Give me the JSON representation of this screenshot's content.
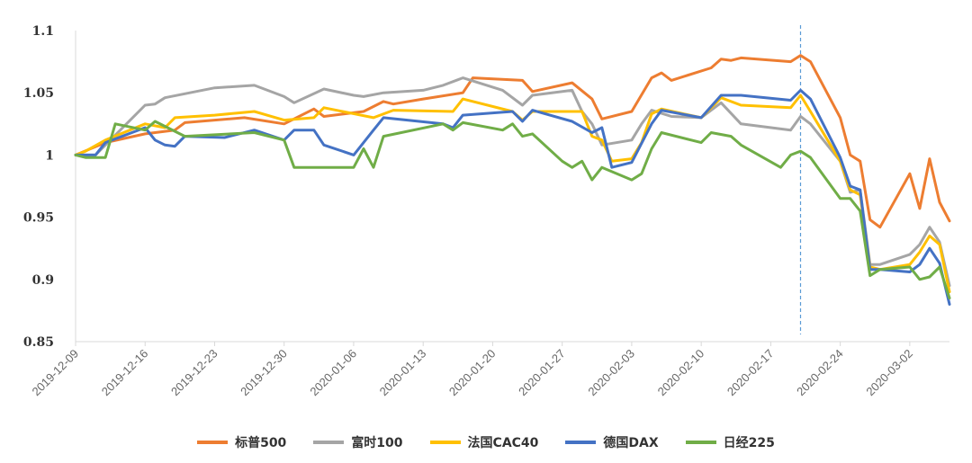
{
  "chart_data": {
    "type": "line",
    "y_ticks": [
      "1.1",
      "1.05",
      "1",
      "0.95",
      "0.9",
      "0.85"
    ],
    "ylim": [
      0.85,
      1.1
    ],
    "x_ticks": [
      "2019-12-09",
      "2019-12-16",
      "2019-12-23",
      "2019-12-30",
      "2020-01-06",
      "2020-01-13",
      "2020-01-20",
      "2020-01-27",
      "2020-02-03",
      "2020-02-10",
      "2020-02-17",
      "2020-02-24",
      "2020-03-02"
    ],
    "x_start": "2019-12-09",
    "x_end": "2020-03-06",
    "vline_date": "2020-02-20",
    "series": [
      {
        "name": "标普500",
        "color": "#ED7D31",
        "points": [
          [
            "2019-12-09",
            1.0
          ],
          [
            "2019-12-12",
            1.01
          ],
          [
            "2019-12-16",
            1.017
          ],
          [
            "2019-12-19",
            1.02
          ],
          [
            "2019-12-20",
            1.026
          ],
          [
            "2019-12-26",
            1.03
          ],
          [
            "2019-12-30",
            1.025
          ],
          [
            "2020-01-02",
            1.037
          ],
          [
            "2020-01-03",
            1.031
          ],
          [
            "2020-01-07",
            1.035
          ],
          [
            "2020-01-09",
            1.043
          ],
          [
            "2020-01-10",
            1.041
          ],
          [
            "2020-01-13",
            1.045
          ],
          [
            "2020-01-17",
            1.05
          ],
          [
            "2020-01-18",
            1.062
          ],
          [
            "2020-01-23",
            1.06
          ],
          [
            "2020-01-24",
            1.051
          ],
          [
            "2020-01-28",
            1.058
          ],
          [
            "2020-01-30",
            1.045
          ],
          [
            "2020-01-31",
            1.029
          ],
          [
            "2020-02-03",
            1.035
          ],
          [
            "2020-02-05",
            1.062
          ],
          [
            "2020-02-06",
            1.066
          ],
          [
            "2020-02-07",
            1.06
          ],
          [
            "2020-02-11",
            1.07
          ],
          [
            "2020-02-12",
            1.077
          ],
          [
            "2020-02-13",
            1.076
          ],
          [
            "2020-02-14",
            1.078
          ],
          [
            "2020-02-19",
            1.075
          ],
          [
            "2020-02-20",
            1.08
          ],
          [
            "2020-02-21",
            1.075
          ],
          [
            "2020-02-24",
            1.03
          ],
          [
            "2020-02-25",
            1.0
          ],
          [
            "2020-02-26",
            0.995
          ],
          [
            "2020-02-27",
            0.948
          ],
          [
            "2020-02-28",
            0.942
          ],
          [
            "2020-03-02",
            0.985
          ],
          [
            "2020-03-03",
            0.957
          ],
          [
            "2020-03-04",
            0.997
          ],
          [
            "2020-03-05",
            0.962
          ],
          [
            "2020-03-06",
            0.947
          ]
        ]
      },
      {
        "name": "富时100",
        "color": "#A5A5A5",
        "points": [
          [
            "2019-12-09",
            1.0
          ],
          [
            "2019-12-11",
            1.0
          ],
          [
            "2019-12-16",
            1.04
          ],
          [
            "2019-12-17",
            1.041
          ],
          [
            "2019-12-18",
            1.046
          ],
          [
            "2019-12-23",
            1.054
          ],
          [
            "2019-12-27",
            1.056
          ],
          [
            "2019-12-30",
            1.047
          ],
          [
            "2019-12-31",
            1.042
          ],
          [
            "2020-01-03",
            1.053
          ],
          [
            "2020-01-06",
            1.048
          ],
          [
            "2020-01-07",
            1.047
          ],
          [
            "2020-01-09",
            1.05
          ],
          [
            "2020-01-13",
            1.052
          ],
          [
            "2020-01-15",
            1.056
          ],
          [
            "2020-01-17",
            1.062
          ],
          [
            "2020-01-21",
            1.052
          ],
          [
            "2020-01-23",
            1.04
          ],
          [
            "2020-01-24",
            1.048
          ],
          [
            "2020-01-28",
            1.052
          ],
          [
            "2020-01-29",
            1.035
          ],
          [
            "2020-01-30",
            1.025
          ],
          [
            "2020-01-31",
            1.008
          ],
          [
            "2020-02-03",
            1.012
          ],
          [
            "2020-02-04",
            1.025
          ],
          [
            "2020-02-05",
            1.036
          ],
          [
            "2020-02-07",
            1.031
          ],
          [
            "2020-02-10",
            1.03
          ],
          [
            "2020-02-12",
            1.042
          ],
          [
            "2020-02-14",
            1.025
          ],
          [
            "2020-02-19",
            1.02
          ],
          [
            "2020-02-20",
            1.031
          ],
          [
            "2020-02-21",
            1.025
          ],
          [
            "2020-02-24",
            0.995
          ],
          [
            "2020-02-25",
            0.97
          ],
          [
            "2020-02-26",
            0.972
          ],
          [
            "2020-02-27",
            0.912
          ],
          [
            "2020-02-28",
            0.912
          ],
          [
            "2020-03-02",
            0.92
          ],
          [
            "2020-03-03",
            0.928
          ],
          [
            "2020-03-04",
            0.942
          ],
          [
            "2020-03-05",
            0.93
          ],
          [
            "2020-03-06",
            0.895
          ]
        ]
      },
      {
        "name": "法国CAC40",
        "color": "#FFC000",
        "points": [
          [
            "2019-12-09",
            1.0
          ],
          [
            "2019-12-10",
            1.003
          ],
          [
            "2019-12-12",
            1.012
          ],
          [
            "2019-12-16",
            1.025
          ],
          [
            "2019-12-18",
            1.022
          ],
          [
            "2019-12-19",
            1.03
          ],
          [
            "2019-12-23",
            1.032
          ],
          [
            "2019-12-27",
            1.035
          ],
          [
            "2019-12-30",
            1.028
          ],
          [
            "2020-01-02",
            1.03
          ],
          [
            "2020-01-03",
            1.038
          ],
          [
            "2020-01-08",
            1.03
          ],
          [
            "2020-01-10",
            1.036
          ],
          [
            "2020-01-16",
            1.035
          ],
          [
            "2020-01-17",
            1.045
          ],
          [
            "2020-01-22",
            1.035
          ],
          [
            "2020-01-23",
            1.028
          ],
          [
            "2020-01-24",
            1.035
          ],
          [
            "2020-01-29",
            1.035
          ],
          [
            "2020-01-30",
            1.015
          ],
          [
            "2020-01-31",
            1.012
          ],
          [
            "2020-02-01",
            0.995
          ],
          [
            "2020-02-03",
            0.997
          ],
          [
            "2020-02-04",
            1.01
          ],
          [
            "2020-02-05",
            1.033
          ],
          [
            "2020-02-06",
            1.037
          ],
          [
            "2020-02-10",
            1.03
          ],
          [
            "2020-02-12",
            1.046
          ],
          [
            "2020-02-14",
            1.04
          ],
          [
            "2020-02-19",
            1.038
          ],
          [
            "2020-02-20",
            1.048
          ],
          [
            "2020-02-21",
            1.035
          ],
          [
            "2020-02-24",
            0.995
          ],
          [
            "2020-02-25",
            0.972
          ],
          [
            "2020-02-26",
            0.968
          ],
          [
            "2020-02-27",
            0.91
          ],
          [
            "2020-02-28",
            0.908
          ],
          [
            "2020-03-02",
            0.912
          ],
          [
            "2020-03-03",
            0.922
          ],
          [
            "2020-03-04",
            0.935
          ],
          [
            "2020-03-05",
            0.928
          ],
          [
            "2020-03-06",
            0.89
          ]
        ]
      },
      {
        "name": "德国DAX",
        "color": "#4472C4",
        "points": [
          [
            "2019-12-09",
            1.0
          ],
          [
            "2019-12-11",
            1.0
          ],
          [
            "2019-12-12",
            1.01
          ],
          [
            "2019-12-16",
            1.022
          ],
          [
            "2019-12-17",
            1.012
          ],
          [
            "2019-12-18",
            1.008
          ],
          [
            "2019-12-19",
            1.007
          ],
          [
            "2019-12-20",
            1.015
          ],
          [
            "2019-12-24",
            1.014
          ],
          [
            "2019-12-27",
            1.02
          ],
          [
            "2019-12-30",
            1.012
          ],
          [
            "2019-12-31",
            1.02
          ],
          [
            "2020-01-02",
            1.02
          ],
          [
            "2020-01-03",
            1.008
          ],
          [
            "2020-01-06",
            1.0
          ],
          [
            "2020-01-08",
            1.02
          ],
          [
            "2020-01-09",
            1.03
          ],
          [
            "2020-01-15",
            1.025
          ],
          [
            "2020-01-16",
            1.022
          ],
          [
            "2020-01-17",
            1.032
          ],
          [
            "2020-01-22",
            1.035
          ],
          [
            "2020-01-23",
            1.027
          ],
          [
            "2020-01-24",
            1.036
          ],
          [
            "2020-01-28",
            1.027
          ],
          [
            "2020-01-30",
            1.018
          ],
          [
            "2020-01-31",
            1.022
          ],
          [
            "2020-02-01",
            0.99
          ],
          [
            "2020-02-03",
            0.994
          ],
          [
            "2020-02-05",
            1.025
          ],
          [
            "2020-02-06",
            1.036
          ],
          [
            "2020-02-10",
            1.03
          ],
          [
            "2020-02-12",
            1.048
          ],
          [
            "2020-02-14",
            1.048
          ],
          [
            "2020-02-19",
            1.044
          ],
          [
            "2020-02-20",
            1.052
          ],
          [
            "2020-02-21",
            1.045
          ],
          [
            "2020-02-24",
            0.998
          ],
          [
            "2020-02-25",
            0.975
          ],
          [
            "2020-02-26",
            0.972
          ],
          [
            "2020-02-27",
            0.908
          ],
          [
            "2020-02-28",
            0.908
          ],
          [
            "2020-03-02",
            0.906
          ],
          [
            "2020-03-03",
            0.912
          ],
          [
            "2020-03-04",
            0.925
          ],
          [
            "2020-03-05",
            0.913
          ],
          [
            "2020-03-06",
            0.88
          ]
        ]
      },
      {
        "name": "日经225",
        "color": "#70AD47",
        "points": [
          [
            "2019-12-09",
            1.0
          ],
          [
            "2019-12-10",
            0.998
          ],
          [
            "2019-12-12",
            0.998
          ],
          [
            "2019-12-13",
            1.025
          ],
          [
            "2019-12-16",
            1.02
          ],
          [
            "2019-12-17",
            1.027
          ],
          [
            "2019-12-20",
            1.015
          ],
          [
            "2019-12-27",
            1.018
          ],
          [
            "2019-12-30",
            1.012
          ],
          [
            "2019-12-31",
            0.99
          ],
          [
            "2020-01-06",
            0.99
          ],
          [
            "2020-01-07",
            1.005
          ],
          [
            "2020-01-08",
            0.99
          ],
          [
            "2020-01-09",
            1.015
          ],
          [
            "2020-01-15",
            1.025
          ],
          [
            "2020-01-16",
            1.02
          ],
          [
            "2020-01-17",
            1.026
          ],
          [
            "2020-01-21",
            1.02
          ],
          [
            "2020-01-22",
            1.025
          ],
          [
            "2020-01-23",
            1.015
          ],
          [
            "2020-01-24",
            1.017
          ],
          [
            "2020-01-27",
            0.995
          ],
          [
            "2020-01-28",
            0.99
          ],
          [
            "2020-01-29",
            0.995
          ],
          [
            "2020-01-30",
            0.98
          ],
          [
            "2020-01-31",
            0.99
          ],
          [
            "2020-02-03",
            0.98
          ],
          [
            "2020-02-04",
            0.985
          ],
          [
            "2020-02-05",
            1.005
          ],
          [
            "2020-02-06",
            1.018
          ],
          [
            "2020-02-10",
            1.01
          ],
          [
            "2020-02-11",
            1.018
          ],
          [
            "2020-02-13",
            1.015
          ],
          [
            "2020-02-14",
            1.008
          ],
          [
            "2020-02-18",
            0.99
          ],
          [
            "2020-02-19",
            1.0
          ],
          [
            "2020-02-20",
            1.003
          ],
          [
            "2020-02-21",
            0.998
          ],
          [
            "2020-02-24",
            0.965
          ],
          [
            "2020-02-25",
            0.965
          ],
          [
            "2020-02-26",
            0.955
          ],
          [
            "2020-02-27",
            0.903
          ],
          [
            "2020-02-28",
            0.908
          ],
          [
            "2020-03-02",
            0.91
          ],
          [
            "2020-03-03",
            0.9
          ],
          [
            "2020-03-04",
            0.902
          ],
          [
            "2020-03-05",
            0.91
          ],
          [
            "2020-03-06",
            0.885
          ]
        ]
      }
    ]
  }
}
